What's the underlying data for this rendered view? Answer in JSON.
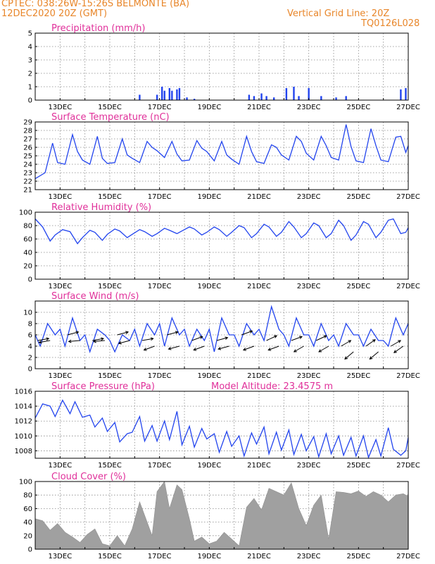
{
  "header": {
    "left_line1": "CPTEC:   038:26W-15:26S   BELMONTE (BA)",
    "left_line2": "12DEC2020 20Z (GMT)",
    "right_line1": "Vertical Grid Line: 20Z",
    "right_line2": "TQ0126L028"
  },
  "colors": {
    "header": "#e8862a",
    "titles": "#e0309a",
    "lines": "#2244ee",
    "cloud": "#a0a0a0",
    "precip": "#2244ee"
  },
  "x_tick_labels": [
    "13DEC",
    "15DEC",
    "17DEC",
    "19DEC",
    "21DEC",
    "23DEC",
    "25DEC",
    "27DEC"
  ],
  "chart_data": [
    {
      "id": "precip",
      "type": "bar",
      "title": "Precipitation (mm/h)",
      "ylim": [
        0,
        5
      ],
      "yticks": [
        0,
        1,
        2,
        3,
        4,
        5
      ],
      "x": [
        16.2,
        16.9,
        17.1,
        17.2,
        17.4,
        17.5,
        17.7,
        17.8,
        18.1,
        18.4,
        20.6,
        20.8,
        21.1,
        21.3,
        21.6,
        22.1,
        22.4,
        22.6,
        23.0,
        23.5,
        24.1,
        24.5,
        26.7,
        26.9
      ],
      "values": [
        0.4,
        0.4,
        1.0,
        0.7,
        0.9,
        0.7,
        0.8,
        0.9,
        0.2,
        0.1,
        0.4,
        0.3,
        0.5,
        0.3,
        0.2,
        0.9,
        1.0,
        0.3,
        0.9,
        0.3,
        0.2,
        0.3,
        0.8,
        0.9
      ]
    },
    {
      "id": "temperature",
      "type": "line",
      "title": "Surface Temperature (nC)",
      "ylim": [
        21,
        29
      ],
      "yticks": [
        21,
        22,
        23,
        24,
        25,
        26,
        27,
        28,
        29
      ],
      "x": [
        12.0,
        12.4,
        12.7,
        12.9,
        13.2,
        13.5,
        13.7,
        13.9,
        14.2,
        14.5,
        14.7,
        14.9,
        15.2,
        15.5,
        15.7,
        15.9,
        16.2,
        16.5,
        16.7,
        16.9,
        17.2,
        17.5,
        17.7,
        17.9,
        18.2,
        18.5,
        18.7,
        18.9,
        19.2,
        19.5,
        19.7,
        19.9,
        20.2,
        20.5,
        20.7,
        20.9,
        21.2,
        21.5,
        21.7,
        21.9,
        22.2,
        22.5,
        22.7,
        22.9,
        23.2,
        23.5,
        23.7,
        23.9,
        24.2,
        24.5,
        24.7,
        24.9,
        25.2,
        25.5,
        25.7,
        25.9,
        26.2,
        26.5,
        26.7,
        26.9,
        27.0
      ],
      "values": [
        22.3,
        23.0,
        26.5,
        24.2,
        24.0,
        27.5,
        25.5,
        24.5,
        24.0,
        27.3,
        24.7,
        24.1,
        24.2,
        27.0,
        25.1,
        24.7,
        24.2,
        26.7,
        26.0,
        25.6,
        24.8,
        26.7,
        25.2,
        24.4,
        24.5,
        26.8,
        25.9,
        25.5,
        24.4,
        26.7,
        25.1,
        24.6,
        24.0,
        27.3,
        25.5,
        24.3,
        24.1,
        26.3,
        26.0,
        25.1,
        24.5,
        27.3,
        26.7,
        25.3,
        24.5,
        27.3,
        26.2,
        24.8,
        24.5,
        28.7,
        26.1,
        24.4,
        24.2,
        28.2,
        26.2,
        24.5,
        24.3,
        27.2,
        27.3,
        25.4,
        26.2
      ]
    },
    {
      "id": "humidity",
      "type": "line",
      "title": "Relative Humidity (%)",
      "ylim": [
        0,
        100
      ],
      "yticks": [
        0,
        20,
        40,
        60,
        80,
        100
      ],
      "x": [
        12.0,
        12.3,
        12.6,
        12.8,
        13.1,
        13.4,
        13.7,
        13.9,
        14.2,
        14.4,
        14.7,
        14.9,
        15.2,
        15.4,
        15.7,
        15.9,
        16.2,
        16.4,
        16.7,
        16.9,
        17.2,
        17.4,
        17.7,
        17.9,
        18.2,
        18.4,
        18.7,
        18.9,
        19.2,
        19.4,
        19.7,
        19.9,
        20.2,
        20.4,
        20.7,
        20.9,
        21.2,
        21.4,
        21.7,
        21.9,
        22.2,
        22.4,
        22.7,
        22.9,
        23.2,
        23.4,
        23.7,
        23.9,
        24.2,
        24.4,
        24.7,
        24.9,
        25.2,
        25.4,
        25.7,
        25.9,
        26.2,
        26.4,
        26.7,
        26.9,
        27.0
      ],
      "values": [
        90,
        78,
        57,
        66,
        74,
        71,
        53,
        62,
        73,
        70,
        58,
        67,
        75,
        72,
        62,
        67,
        74,
        71,
        64,
        68,
        76,
        73,
        68,
        72,
        78,
        75,
        66,
        70,
        78,
        74,
        64,
        70,
        80,
        77,
        62,
        68,
        82,
        78,
        64,
        70,
        86,
        78,
        62,
        68,
        84,
        80,
        62,
        68,
        88,
        80,
        58,
        66,
        86,
        82,
        62,
        70,
        88,
        90,
        68,
        70,
        77
      ]
    },
    {
      "id": "wind",
      "type": "line",
      "title": "Surface Wind (m/s)",
      "ylim": [
        0,
        12
      ],
      "yticks": [
        0,
        2,
        4,
        6,
        8,
        10
      ],
      "x": [
        12.0,
        12.2,
        12.5,
        12.8,
        13.0,
        13.2,
        13.5,
        13.8,
        14.0,
        14.2,
        14.5,
        14.8,
        15.0,
        15.2,
        15.5,
        15.8,
        16.0,
        16.2,
        16.5,
        16.8,
        17.0,
        17.2,
        17.5,
        17.8,
        18.0,
        18.2,
        18.5,
        18.8,
        19.0,
        19.2,
        19.5,
        19.8,
        20.0,
        20.2,
        20.5,
        20.8,
        21.0,
        21.2,
        21.5,
        21.8,
        22.0,
        22.2,
        22.5,
        22.8,
        23.0,
        23.2,
        23.5,
        23.8,
        24.0,
        24.2,
        24.5,
        24.8,
        25.0,
        25.2,
        25.5,
        25.8,
        26.0,
        26.2,
        26.5,
        26.8,
        27.0
      ],
      "values": [
        6,
        4,
        8,
        6,
        7,
        4,
        9,
        5,
        6,
        3,
        7,
        6,
        5,
        3,
        6,
        5,
        7,
        4,
        8,
        6,
        8,
        4,
        9,
        6,
        7,
        4,
        7,
        5,
        7,
        3,
        9,
        6,
        6,
        4,
        8,
        6,
        7,
        5,
        11,
        7,
        6,
        4,
        9,
        6,
        6,
        4,
        8,
        5,
        6,
        4,
        8,
        6,
        6,
        4,
        7,
        5,
        5,
        4,
        9,
        6,
        8
      ],
      "vector_x": [
        12.1,
        12.6,
        13.3,
        13.8,
        14.3,
        14.8,
        15.3,
        15.8,
        16.3,
        16.8,
        17.3,
        17.8,
        18.3,
        18.8,
        19.3,
        19.8,
        20.3,
        20.8,
        21.3,
        21.8,
        22.3,
        22.8,
        23.3,
        23.8,
        24.3,
        24.8,
        25.3,
        25.8,
        26.3,
        26.8
      ],
      "vector_y": [
        5,
        5,
        6,
        5,
        5,
        5,
        6,
        5,
        5,
        4,
        6,
        4,
        5,
        4,
        5,
        4,
        6,
        4,
        5,
        4,
        5,
        4,
        5,
        4,
        4,
        3,
        4,
        3,
        4,
        4
      ],
      "vector_dir": [
        10,
        190,
        15,
        185,
        10,
        185,
        15,
        195,
        10,
        200,
        15,
        195,
        20,
        200,
        15,
        195,
        20,
        200,
        25,
        200,
        20,
        210,
        25,
        210,
        30,
        220,
        35,
        220,
        30,
        215
      ]
    },
    {
      "id": "pressure",
      "type": "line",
      "title": "Surface Pressure (hPa)",
      "subtitle": "Model Altitude: 23.4575 m",
      "ylim": [
        1007,
        1016
      ],
      "yticks": [
        1008,
        1010,
        1012,
        1014,
        1016
      ],
      "x": [
        12.0,
        12.3,
        12.6,
        12.8,
        13.1,
        13.4,
        13.6,
        13.9,
        14.2,
        14.4,
        14.7,
        14.9,
        15.2,
        15.4,
        15.7,
        15.9,
        16.2,
        16.4,
        16.7,
        16.9,
        17.2,
        17.4,
        17.7,
        17.9,
        18.2,
        18.4,
        18.7,
        18.9,
        19.2,
        19.4,
        19.7,
        19.9,
        20.2,
        20.4,
        20.7,
        20.9,
        21.2,
        21.4,
        21.7,
        21.9,
        22.2,
        22.4,
        22.7,
        22.9,
        23.2,
        23.4,
        23.7,
        23.9,
        24.2,
        24.4,
        24.7,
        24.9,
        25.2,
        25.4,
        25.7,
        25.9,
        26.2,
        26.4,
        26.7,
        26.9,
        27.0
      ],
      "values": [
        1012.4,
        1014.3,
        1014.0,
        1012.6,
        1014.8,
        1013.0,
        1014.6,
        1012.5,
        1012.8,
        1011.2,
        1012.4,
        1010.6,
        1011.8,
        1009.2,
        1010.3,
        1010.5,
        1012.6,
        1009.3,
        1011.4,
        1009.3,
        1012.0,
        1009.5,
        1013.3,
        1008.8,
        1011.3,
        1008.5,
        1011.0,
        1009.6,
        1010.3,
        1007.8,
        1010.6,
        1008.6,
        1010.0,
        1007.3,
        1010.4,
        1008.9,
        1011.2,
        1007.6,
        1010.5,
        1008.1,
        1010.8,
        1007.5,
        1010.2,
        1008.0,
        1009.9,
        1007.2,
        1010.3,
        1007.6,
        1010.0,
        1007.4,
        1009.8,
        1007.3,
        1010.0,
        1007.1,
        1009.5,
        1007.3,
        1011.1,
        1008.2,
        1007.4,
        1008.0,
        1009.8
      ]
    },
    {
      "id": "cloud",
      "type": "area",
      "title": "Cloud Cover (%)",
      "ylim": [
        0,
        100
      ],
      "yticks": [
        0,
        20,
        40,
        60,
        80,
        100
      ],
      "x": [
        12.0,
        12.3,
        12.6,
        12.9,
        13.2,
        13.5,
        13.8,
        14.1,
        14.4,
        14.7,
        15.0,
        15.3,
        15.6,
        15.9,
        16.2,
        16.4,
        16.7,
        16.9,
        17.2,
        17.4,
        17.7,
        17.9,
        18.2,
        18.4,
        18.7,
        19.0,
        19.3,
        19.6,
        19.9,
        20.2,
        20.5,
        20.8,
        21.1,
        21.4,
        21.7,
        22.0,
        22.3,
        22.6,
        22.9,
        23.2,
        23.5,
        23.8,
        24.1,
        24.4,
        24.7,
        25.0,
        25.3,
        25.6,
        25.9,
        26.2,
        26.5,
        26.8,
        27.0
      ],
      "values": [
        45,
        42,
        28,
        38,
        25,
        18,
        10,
        22,
        30,
        8,
        5,
        20,
        5,
        30,
        70,
        50,
        20,
        85,
        100,
        60,
        95,
        88,
        45,
        12,
        18,
        8,
        12,
        25,
        15,
        5,
        62,
        75,
        58,
        90,
        85,
        80,
        98,
        60,
        35,
        65,
        80,
        15,
        85,
        84,
        82,
        86,
        78,
        85,
        80,
        70,
        80,
        82,
        78
      ]
    }
  ]
}
